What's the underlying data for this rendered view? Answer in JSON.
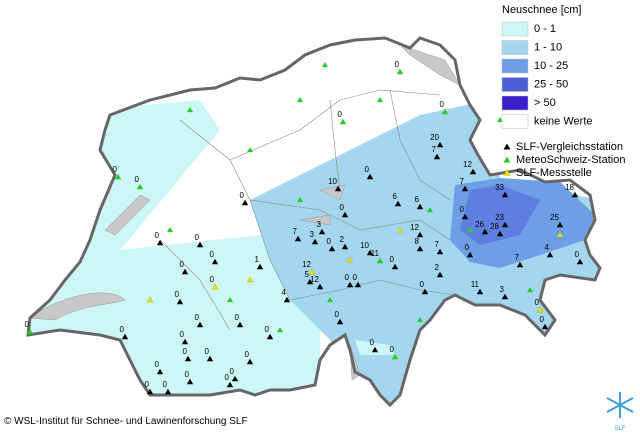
{
  "legend": {
    "title": "Neuschnee [cm]",
    "classes": [
      {
        "label": "0 - 1",
        "color": "#cdf6f6"
      },
      {
        "label": "1 - 10",
        "color": "#a5d6ef"
      },
      {
        "label": "10 - 25",
        "color": "#6e9ee6"
      },
      {
        "label": "25 - 50",
        "color": "#4b5ed6"
      },
      {
        "label": "> 50",
        "color": "#3a20cc"
      },
      {
        "label": "keine Werte",
        "color": "#ffffff"
      }
    ],
    "stations": [
      {
        "label": "SLF-Vergleichsstation",
        "color": "#000000"
      },
      {
        "label": "MeteoSchweiz-Station",
        "color": "#22cc22"
      },
      {
        "label": "SLF-Messstelle",
        "color": "#e8e000"
      }
    ]
  },
  "station_values": [
    0,
    0,
    0,
    20,
    7,
    12,
    7,
    33,
    18,
    10,
    0,
    0,
    0,
    6,
    6,
    0,
    26,
    23,
    28,
    25,
    7,
    3,
    3,
    2,
    10,
    11,
    12,
    8,
    7,
    0,
    7,
    4,
    0,
    1,
    12,
    5,
    12,
    4,
    0,
    0,
    0,
    2,
    0,
    11,
    3,
    0,
    0,
    0,
    0,
    0,
    0,
    0,
    0,
    0,
    0,
    0,
    0,
    0,
    0,
    0,
    0,
    0,
    0,
    0,
    0,
    0,
    0,
    0,
    0,
    0,
    0,
    0,
    0,
    0
  ],
  "copyright": "© WSL-Institut für Schnee- und Lawinenforschung SLF",
  "logo_text": "SLF"
}
